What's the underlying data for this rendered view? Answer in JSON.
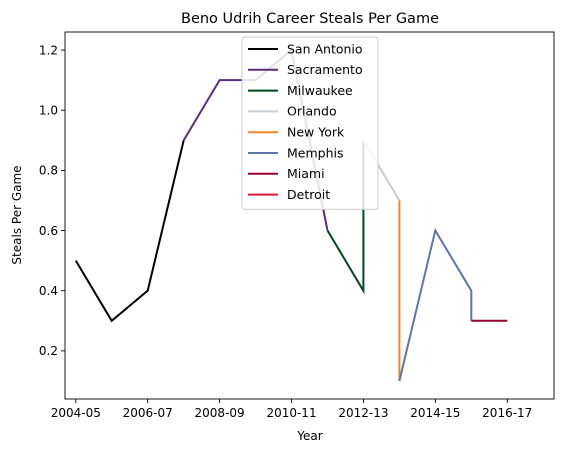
{
  "chart_data": {
    "type": "line",
    "title": "Beno Udrih Career Steals Per Game",
    "xlabel": "Year",
    "ylabel": "Steals Per Game",
    "x_range": [
      2003.7,
      2017.3
    ],
    "ylim": [
      0.04,
      1.26
    ],
    "x_ticks": [
      {
        "value": 2004,
        "label": "2004-05"
      },
      {
        "value": 2006,
        "label": "2006-07"
      },
      {
        "value": 2008,
        "label": "2008-09"
      },
      {
        "value": 2010,
        "label": "2010-11"
      },
      {
        "value": 2012,
        "label": "2012-13"
      },
      {
        "value": 2014,
        "label": "2014-15"
      },
      {
        "value": 2016,
        "label": "2016-17"
      }
    ],
    "y_ticks": [
      {
        "value": 0.2,
        "label": "0.2"
      },
      {
        "value": 0.4,
        "label": "0.4"
      },
      {
        "value": 0.6,
        "label": "0.6"
      },
      {
        "value": 0.8,
        "label": "0.8"
      },
      {
        "value": 1.0,
        "label": "1.0"
      },
      {
        "value": 1.2,
        "label": "1.2"
      }
    ],
    "grid": false,
    "legend_position": "top-center",
    "series": [
      {
        "name": "San Antonio",
        "color": "#000000",
        "points": [
          [
            2004,
            0.5
          ],
          [
            2005,
            0.3
          ],
          [
            2006,
            0.4
          ],
          [
            2007,
            0.9
          ]
        ]
      },
      {
        "name": "Sacramento",
        "color": "#5a2d81",
        "points": [
          [
            2007,
            0.9
          ],
          [
            2008,
            1.1
          ],
          [
            2009,
            1.1
          ],
          [
            2010,
            1.2
          ],
          [
            2011,
            0.6
          ]
        ]
      },
      {
        "name": "Milwaukee",
        "color": "#00471b",
        "points": [
          [
            2011,
            0.6
          ],
          [
            2012,
            0.4
          ],
          [
            2012,
            0.9
          ]
        ]
      },
      {
        "name": "Orlando",
        "color": "#c4ced4",
        "points": [
          [
            2012,
            0.9
          ],
          [
            2013,
            0.7
          ]
        ]
      },
      {
        "name": "New York",
        "color": "#f58426",
        "points": [
          [
            2013,
            0.7
          ],
          [
            2013,
            0.1
          ]
        ]
      },
      {
        "name": "Memphis",
        "color": "#5d76a9",
        "points": [
          [
            2013,
            0.1
          ],
          [
            2014,
            0.6
          ],
          [
            2015,
            0.4
          ],
          [
            2015,
            0.3
          ]
        ]
      },
      {
        "name": "Miami",
        "color": "#98002e",
        "points": [
          [
            2015,
            0.3
          ],
          [
            2016,
            0.3
          ]
        ]
      },
      {
        "name": "Detroit",
        "color": "#e31837",
        "points": []
      }
    ]
  }
}
